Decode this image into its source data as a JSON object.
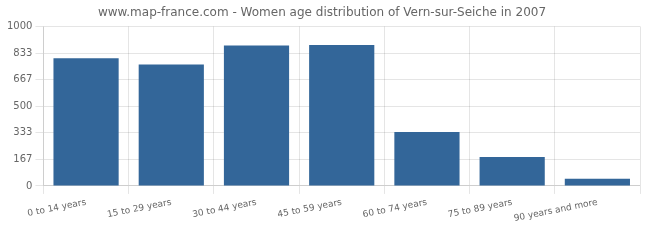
{
  "chart_data": {
    "type": "bar",
    "title": "www.map-france.com - Women age distribution of Vern-sur-Seiche in 2007",
    "categories": [
      "0 to 14 years",
      "15 to 29 years",
      "30 to 44 years",
      "45 to 59 years",
      "60 to 74 years",
      "75 to 89 years",
      "90 years and more"
    ],
    "values": [
      800,
      762,
      880,
      883,
      338,
      182,
      45
    ],
    "color": "#336699",
    "ylim": [
      0,
      1000
    ],
    "yticks": [
      0,
      167,
      333,
      500,
      667,
      833,
      1000
    ],
    "grid": true
  }
}
